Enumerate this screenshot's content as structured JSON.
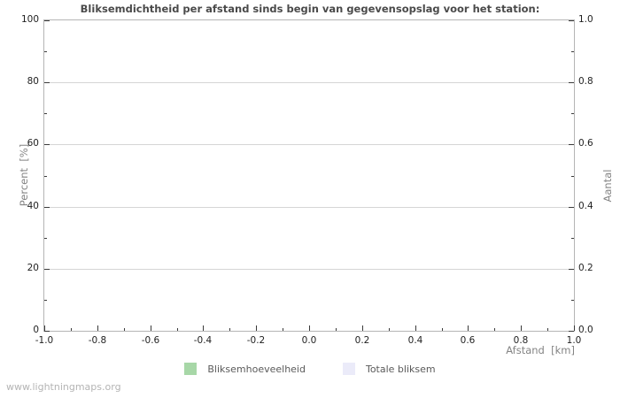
{
  "title": "Bliksemdichtheid per afstand sinds begin van gegevensopslag voor het station:",
  "watermark": "www.lightningmaps.org",
  "colors": {
    "series_green": "#a7d7a7",
    "series_lavender": "#ebebf9",
    "grid": "#d5d5d5",
    "border": "#b5b5b5",
    "tick": "#3a3a3a",
    "title_text": "#4a4a4a",
    "axis_title_text": "#848484"
  },
  "axes": {
    "y_left": {
      "title": "Percent  [%]",
      "ticks": [
        "0",
        "20",
        "40",
        "60",
        "80",
        "100"
      ]
    },
    "y_right": {
      "title": "Aantal",
      "ticks": [
        "0.0",
        "0.2",
        "0.4",
        "0.6",
        "0.8",
        "1.0"
      ]
    },
    "x": {
      "title": "Afstand  [km]",
      "ticks": [
        "-1.0",
        "-0.8",
        "-0.6",
        "-0.4",
        "-0.2",
        "0.0",
        "0.2",
        "0.4",
        "0.6",
        "0.8",
        "1.0"
      ]
    }
  },
  "legend": {
    "items": [
      {
        "label": "Bliksemhoeveelheid",
        "color": "#a7d7a7"
      },
      {
        "label": "Totale bliksem",
        "color": "#ebebf9"
      }
    ]
  },
  "chart_data": {
    "type": "bar",
    "title": "Bliksemdichtheid per afstand sinds begin van gegevensopslag voor het station:",
    "xlabel": "Afstand [km]",
    "ylabel": "Percent [%]",
    "ylabel_right": "Aantal",
    "xlim": [
      -1.0,
      1.0
    ],
    "ylim": [
      0,
      100
    ],
    "ylim_right": [
      0.0,
      1.0
    ],
    "x_ticks": [
      -1.0,
      -0.8,
      -0.6,
      -0.4,
      -0.2,
      0.0,
      0.2,
      0.4,
      0.6,
      0.8,
      1.0
    ],
    "y_ticks": [
      0,
      20,
      40,
      60,
      80,
      100
    ],
    "y_ticks_right": [
      0.0,
      0.2,
      0.4,
      0.6,
      0.8,
      1.0
    ],
    "grid": "horizontal",
    "legend_position": "bottom",
    "series": [
      {
        "name": "Bliksemhoeveelheid",
        "color": "#a7d7a7",
        "values": []
      },
      {
        "name": "Totale bliksem",
        "color": "#ebebf9",
        "values": []
      }
    ]
  }
}
